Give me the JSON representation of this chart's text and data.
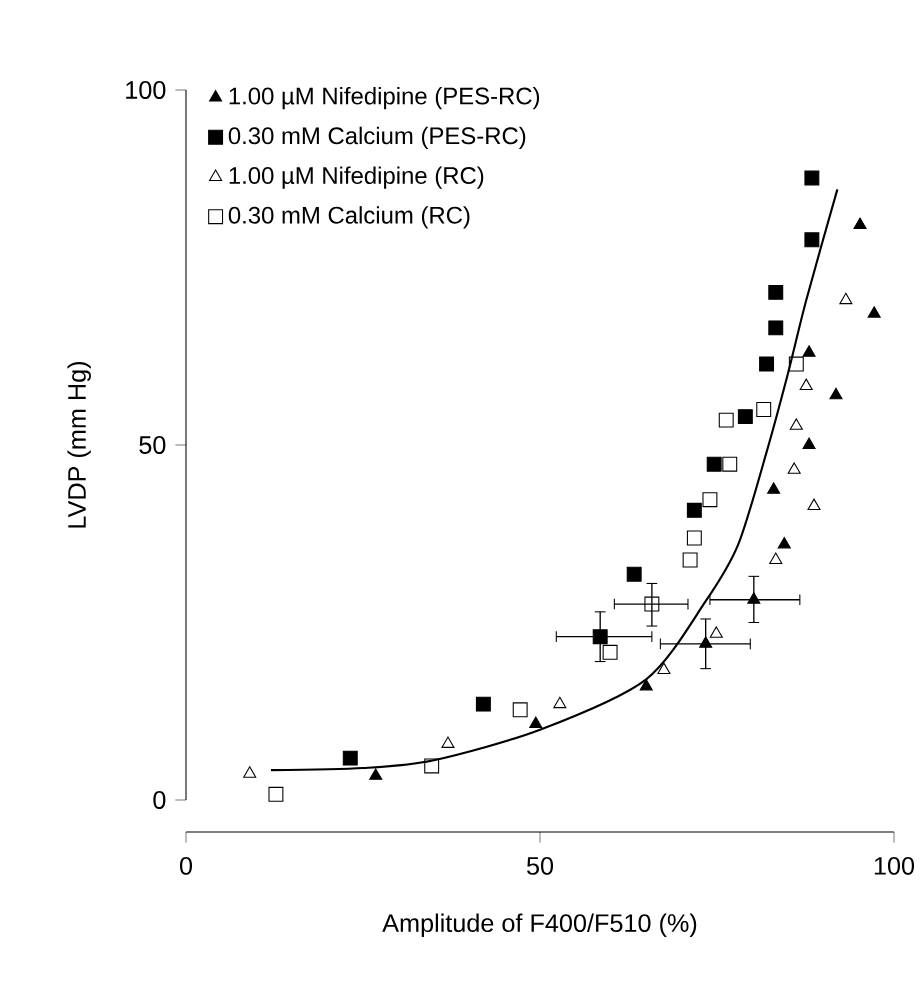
{
  "chart_data": {
    "type": "scatter",
    "xlabel": "Amplitude of F400/F510 (%)",
    "ylabel": "LVDP (mm Hg)",
    "xlim": [
      0,
      100
    ],
    "ylim": [
      0,
      100
    ],
    "xticks": [
      0,
      50,
      100
    ],
    "yticks": [
      0,
      50,
      100
    ],
    "grid": false,
    "legend": "top left",
    "series": [
      {
        "name": "1.00 µM Nifedipine (PES-RC)",
        "color": "#000000",
        "marker": "triangle",
        "x": [
          26.8,
          49.4,
          65,
          73.4,
          80.2,
          83,
          84.5,
          88,
          91.8,
          88,
          95.2,
          97.2
        ],
        "values": [
          3.4,
          10.7,
          16,
          22,
          28.2,
          43.7,
          36,
          50,
          57,
          63,
          81,
          68.5
        ],
        "errors": [
          null,
          null,
          null,
          [
            18.5,
            25.5
          ],
          [
            25,
            31.5
          ],
          null,
          null,
          null,
          null,
          null,
          null,
          null
        ],
        "xerrors": [
          null,
          null,
          null,
          [
            67,
            79.7
          ],
          [
            74,
            86.7
          ],
          null,
          null,
          null,
          null,
          null,
          null,
          null
        ]
      },
      {
        "name": "0.30 mM Calcium (PES-RC)",
        "color": "#000000",
        "marker": "square",
        "x": [
          23.2,
          42,
          58.5,
          63.3,
          71.8,
          74.6,
          79,
          82,
          83.3,
          83.3,
          88.4,
          88.4
        ],
        "values": [
          5.9,
          13.5,
          23,
          31.8,
          40.8,
          47.3,
          54,
          61.4,
          66.5,
          71.5,
          78.9,
          87.6
        ],
        "errors": [
          null,
          null,
          [
            19.5,
            26.5
          ],
          null,
          null,
          null,
          null,
          null,
          null,
          null,
          null,
          null
        ],
        "xerrors": [
          null,
          null,
          [
            52.3,
            65.8
          ],
          null,
          null,
          null,
          null,
          null,
          null,
          null,
          null,
          null
        ]
      },
      {
        "name": "1.00 µM Nifedipine (RC)",
        "color": "#000000",
        "marker": "triangle",
        "x": [
          9,
          37,
          52.8,
          67.5,
          74.9,
          83.3,
          85.9,
          86.2,
          87.6,
          88.7,
          93.2
        ],
        "values": [
          3.7,
          7.9,
          13.5,
          18.3,
          23.4,
          33.8,
          46.5,
          52.7,
          58.3,
          41.4,
          70.4
        ]
      },
      {
        "name": "0.30 mM Calcium (RC)",
        "color": "#000000",
        "marker": "square",
        "x": [
          12.7,
          34.7,
          47.2,
          59.9,
          65.8,
          71.2,
          71.8,
          74,
          76.8,
          76.3,
          81.6,
          86.2
        ],
        "values": [
          0.8,
          4.8,
          12.7,
          20.8,
          27.6,
          33.8,
          36.9,
          42.3,
          47.3,
          53.5,
          55,
          61.4
        ],
        "errors": [
          null,
          null,
          null,
          null,
          [
            24.5,
            30.5
          ],
          null,
          null,
          null,
          null,
          null,
          null,
          null
        ],
        "xerrors": [
          null,
          null,
          null,
          null,
          [
            60.5,
            70.9
          ],
          null,
          null,
          null,
          null,
          null,
          null,
          null
        ]
      },
      {
        "type": "line",
        "color": "#000000",
        "line_style": "solid",
        "marker": "none",
        "x": [
          12,
          25,
          35,
          50,
          65,
          73.4,
          78,
          82,
          85,
          87.6,
          92
        ],
        "values": [
          4.2,
          4.5,
          5.6,
          9.9,
          17,
          28,
          36,
          49,
          60,
          70.4,
          86
        ]
      }
    ]
  }
}
